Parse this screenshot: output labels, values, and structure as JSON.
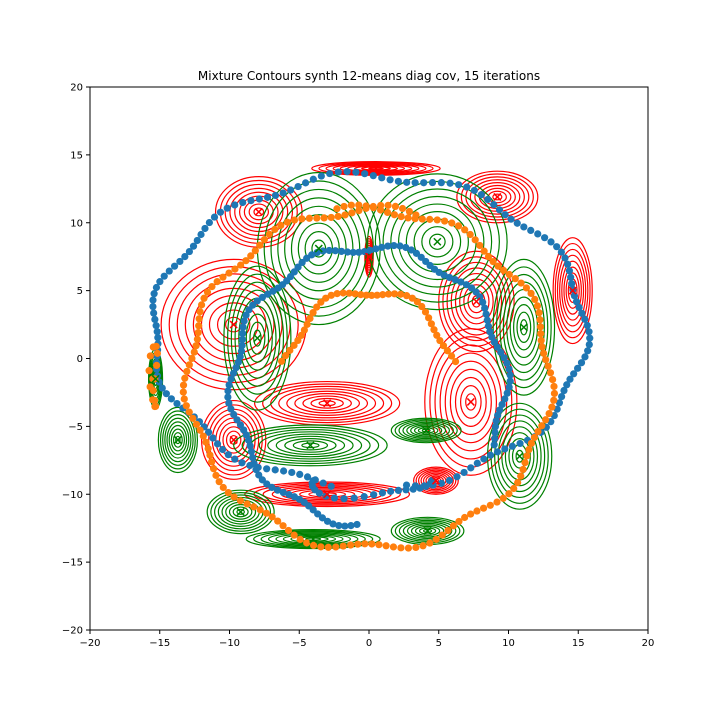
{
  "chart_data": {
    "type": "scatter",
    "title": "Mixture Contours synth 12-means diag cov, 15 iterations",
    "xlabel": "",
    "ylabel": "",
    "xlim": [
      -20,
      20
    ],
    "ylim": [
      -20,
      20
    ],
    "xticks": [
      "−20",
      "−15",
      "−10",
      "−5",
      "0",
      "5",
      "10",
      "15",
      "20"
    ],
    "yticks": [
      "−20",
      "−15",
      "−10",
      "−5",
      "0",
      "5",
      "10",
      "15",
      "20"
    ],
    "grid": false,
    "legend": "none",
    "colors": {
      "blue_points": "#1f77b4",
      "orange_points": "#ff7f0e",
      "red_contours": "#ff0000",
      "green_contours": "#008000"
    },
    "point_series": [
      {
        "color": "blue",
        "arcs": [
          {
            "cx": 0,
            "cy": 2,
            "rx": 15.5,
            "ry": 11.5,
            "from": -80,
            "to": 260,
            "n": 150
          },
          {
            "cx": 0,
            "cy": -2,
            "rx": 9.8,
            "ry": 10.2,
            "from": -25,
            "to": 265,
            "n": 120
          },
          {
            "cx": 0,
            "cy": -9,
            "rx": 4.2,
            "ry": 1.2,
            "from": 180,
            "to": 360,
            "n": 20
          }
        ]
      },
      {
        "color": "orange",
        "arcs": [
          {
            "cx": 0,
            "cy": -1.5,
            "rx": 13,
            "ry": 12.5,
            "from": 75,
            "to": 460,
            "n": 170
          },
          {
            "cx": 0,
            "cy": -3,
            "rx": 6.5,
            "ry": 8,
            "from": 20,
            "to": 160,
            "n": 40
          },
          {
            "cx": -15.3,
            "cy": -1.5,
            "rx": 0.15,
            "ry": 2.2,
            "from": 0,
            "to": 360,
            "n": 14
          }
        ]
      }
    ],
    "components": [
      {
        "color": "red",
        "mean": [
          -9.7,
          2.5
        ],
        "sx": 5.2,
        "sy": 4.8
      },
      {
        "color": "red",
        "mean": [
          -7.9,
          10.8
        ],
        "sx": 3.1,
        "sy": 2.6
      },
      {
        "color": "red",
        "mean": [
          0.5,
          14.0
        ],
        "sx": 4.6,
        "sy": 0.5
      },
      {
        "color": "red",
        "mean": [
          9.2,
          11.9
        ],
        "sx": 2.9,
        "sy": 1.9
      },
      {
        "color": "red",
        "mean": [
          14.6,
          5.0
        ],
        "sx": 1.4,
        "sy": 3.9
      },
      {
        "color": "red",
        "mean": [
          7.7,
          4.2
        ],
        "sx": 2.7,
        "sy": 3.7
      },
      {
        "color": "red",
        "mean": [
          0.0,
          7.5
        ],
        "sx": 0.3,
        "sy": 1.5
      },
      {
        "color": "red",
        "mean": [
          -3.0,
          -3.3
        ],
        "sx": 5.2,
        "sy": 1.6
      },
      {
        "color": "red",
        "mean": [
          7.3,
          -3.2
        ],
        "sx": 3.3,
        "sy": 5.4
      },
      {
        "color": "red",
        "mean": [
          -9.7,
          -6.0
        ],
        "sx": 2.3,
        "sy": 2.9
      },
      {
        "color": "red",
        "mean": [
          -3.0,
          -10.0
        ],
        "sx": 5.9,
        "sy": 0.9
      },
      {
        "color": "red",
        "mean": [
          4.8,
          -9.0
        ],
        "sx": 1.6,
        "sy": 1.0
      },
      {
        "color": "green",
        "mean": [
          -3.6,
          8.1
        ],
        "sx": 4.4,
        "sy": 5.6
      },
      {
        "color": "green",
        "mean": [
          4.9,
          8.6
        ],
        "sx": 5.0,
        "sy": 5.0
      },
      {
        "color": "green",
        "mean": [
          11.1,
          2.3
        ],
        "sx": 2.2,
        "sy": 5.0
      },
      {
        "color": "green",
        "mean": [
          -8.0,
          1.5
        ],
        "sx": 2.4,
        "sy": 5.3
      },
      {
        "color": "green",
        "mean": [
          -15.3,
          -1.5
        ],
        "sx": 0.5,
        "sy": 2.2
      },
      {
        "color": "green",
        "mean": [
          -13.7,
          -6.0
        ],
        "sx": 1.4,
        "sy": 2.4
      },
      {
        "color": "green",
        "mean": [
          -4.2,
          -6.4
        ],
        "sx": 5.5,
        "sy": 1.5
      },
      {
        "color": "green",
        "mean": [
          4.1,
          -5.3
        ],
        "sx": 2.5,
        "sy": 0.9
      },
      {
        "color": "green",
        "mean": [
          10.8,
          -7.2
        ],
        "sx": 2.3,
        "sy": 3.9
      },
      {
        "color": "green",
        "mean": [
          -9.2,
          -11.3
        ],
        "sx": 2.4,
        "sy": 1.6
      },
      {
        "color": "green",
        "mean": [
          -4.0,
          -13.3
        ],
        "sx": 4.8,
        "sy": 0.7
      },
      {
        "color": "green",
        "mean": [
          4.2,
          -12.7
        ],
        "sx": 2.6,
        "sy": 1.0
      }
    ]
  }
}
